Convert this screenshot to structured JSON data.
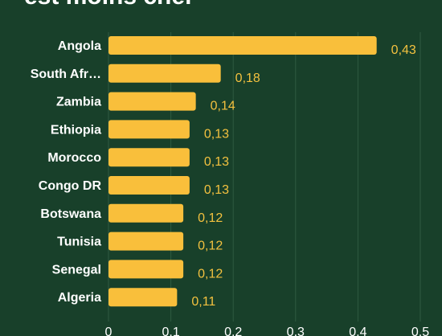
{
  "title": "est moins cher",
  "colors": {
    "background": "#18402a",
    "bar": "#f9bf3b",
    "value_label": "#f3c13f",
    "grid": "#2f5a41",
    "text": "#ffffff"
  },
  "chart_data": {
    "type": "bar",
    "orientation": "horizontal",
    "categories": [
      "Angola",
      "South Afr…",
      "Zambia",
      "Ethiopia",
      "Morocco",
      "Congo DR",
      "Botswana",
      "Tunisia",
      "Senegal",
      "Algeria"
    ],
    "values": [
      0.43,
      0.18,
      0.14,
      0.13,
      0.13,
      0.13,
      0.12,
      0.12,
      0.12,
      0.11
    ],
    "value_labels": [
      "0,43",
      "0,18",
      "0,14",
      "0,13",
      "0,13",
      "0,13",
      "0,12",
      "0,12",
      "0,12",
      "0,11"
    ],
    "x_ticks": [
      "0",
      "0.1",
      "0.2",
      "0.3",
      "0.4",
      "0.5"
    ],
    "xlim": [
      0,
      0.5
    ],
    "grid": true
  }
}
